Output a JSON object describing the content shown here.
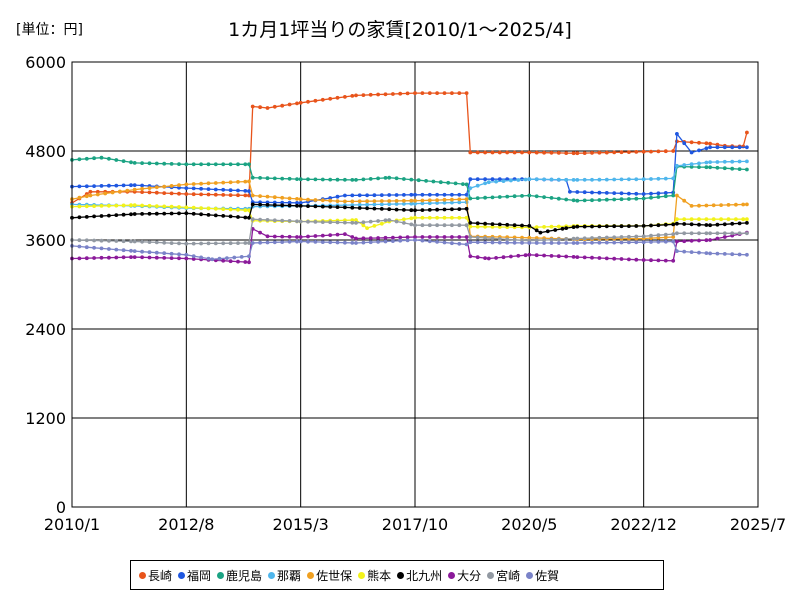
{
  "unit_label": "[単位：円]",
  "chart_data": {
    "type": "line",
    "title": "1カ月1坪当りの家賃[2010/1～2025/4]",
    "xlabel": "",
    "ylabel": "",
    "xlim": [
      "2010/1",
      "2025/7"
    ],
    "ylim": [
      0,
      6000
    ],
    "x_ticks": [
      "2010/1",
      "2012/8",
      "2015/3",
      "2017/10",
      "2020/5",
      "2022/12",
      "2025/7"
    ],
    "y_ticks": [
      0,
      1200,
      2400,
      3600,
      4800,
      6000
    ],
    "y_tick_labels": [
      "0",
      "1200",
      "2400",
      "3600",
      "4800",
      "6000"
    ],
    "grid": true,
    "legend_position": "bottom",
    "series": [
      {
        "name": "長崎",
        "color": "#E8541B",
        "points": [
          [
            "2010/1",
            4100
          ],
          [
            "2010/6",
            4250
          ],
          [
            "2011/6",
            4250
          ],
          [
            "2012/8",
            4220
          ],
          [
            "2014/1",
            4200
          ],
          [
            "2014/2",
            5400
          ],
          [
            "2014/6",
            5380
          ],
          [
            "2015/3",
            5450
          ],
          [
            "2016/6",
            5550
          ],
          [
            "2017/10",
            5580
          ],
          [
            "2018/12",
            5580
          ],
          [
            "2019/1",
            4780
          ],
          [
            "2020/5",
            4780
          ],
          [
            "2021/6",
            4770
          ],
          [
            "2022/12",
            4790
          ],
          [
            "2023/8",
            4800
          ],
          [
            "2023/9",
            4930
          ],
          [
            "2024/6",
            4900
          ],
          [
            "2024/10",
            4870
          ],
          [
            "2025/3",
            4860
          ],
          [
            "2025/4",
            5050
          ]
        ]
      },
      {
        "name": "福岡",
        "color": "#1F57E0",
        "points": [
          [
            "2010/1",
            4320
          ],
          [
            "2011/6",
            4340
          ],
          [
            "2012/8",
            4300
          ],
          [
            "2014/1",
            4260
          ],
          [
            "2014/2",
            4110
          ],
          [
            "2015/3",
            4100
          ],
          [
            "2016/3",
            4200
          ],
          [
            "2017/10",
            4210
          ],
          [
            "2018/12",
            4210
          ],
          [
            "2019/1",
            4420
          ],
          [
            "2020/5",
            4420
          ],
          [
            "2021/3",
            4410
          ],
          [
            "2021/4",
            4250
          ],
          [
            "2022/12",
            4220
          ],
          [
            "2023/8",
            4240
          ],
          [
            "2023/9",
            5030
          ],
          [
            "2024/1",
            4780
          ],
          [
            "2024/6",
            4850
          ],
          [
            "2025/4",
            4850
          ]
        ]
      },
      {
        "name": "鹿児島",
        "color": "#1BA383",
        "points": [
          [
            "2010/1",
            4680
          ],
          [
            "2010/9",
            4710
          ],
          [
            "2011/6",
            4640
          ],
          [
            "2012/8",
            4620
          ],
          [
            "2014/1",
            4620
          ],
          [
            "2014/2",
            4440
          ],
          [
            "2015/3",
            4420
          ],
          [
            "2016/6",
            4410
          ],
          [
            "2017/3",
            4440
          ],
          [
            "2018/12",
            4350
          ],
          [
            "2019/1",
            4160
          ],
          [
            "2020/5",
            4200
          ],
          [
            "2021/6",
            4130
          ],
          [
            "2022/12",
            4160
          ],
          [
            "2023/8",
            4200
          ],
          [
            "2023/9",
            4590
          ],
          [
            "2024/6",
            4580
          ],
          [
            "2025/4",
            4550
          ]
        ]
      },
      {
        "name": "那覇",
        "color": "#4FB6EC",
        "points": [
          [
            "2010/1",
            4080
          ],
          [
            "2011/6",
            4060
          ],
          [
            "2012/8",
            4030
          ],
          [
            "2014/1",
            4020
          ],
          [
            "2014/2",
            4050
          ],
          [
            "2015/3",
            4060
          ],
          [
            "2016/3",
            4070
          ],
          [
            "2017/10",
            4090
          ],
          [
            "2018/12",
            4110
          ],
          [
            "2019/1",
            4300
          ],
          [
            "2019/6",
            4380
          ],
          [
            "2020/5",
            4420
          ],
          [
            "2021/6",
            4410
          ],
          [
            "2022/12",
            4420
          ],
          [
            "2023/8",
            4430
          ],
          [
            "2023/9",
            4600
          ],
          [
            "2024/6",
            4650
          ],
          [
            "2025/4",
            4660
          ]
        ]
      },
      {
        "name": "佐世保",
        "color": "#F0A020",
        "points": [
          [
            "2010/1",
            4150
          ],
          [
            "2010/6",
            4200
          ],
          [
            "2011/6",
            4280
          ],
          [
            "2012/8",
            4350
          ],
          [
            "2014/1",
            4390
          ],
          [
            "2014/2",
            4200
          ],
          [
            "2015/3",
            4150
          ],
          [
            "2016/3",
            4120
          ],
          [
            "2017/10",
            4130
          ],
          [
            "2018/12",
            4150
          ],
          [
            "2019/1",
            3650
          ],
          [
            "2020/5",
            3630
          ],
          [
            "2021/6",
            3610
          ],
          [
            "2022/12",
            3620
          ],
          [
            "2023/8",
            3640
          ],
          [
            "2023/9",
            4200
          ],
          [
            "2024/1",
            4060
          ],
          [
            "2025/4",
            4080
          ]
        ]
      },
      {
        "name": "熊本",
        "color": "#F2F21A",
        "points": [
          [
            "2010/1",
            4050
          ],
          [
            "2011/6",
            4070
          ],
          [
            "2012/8",
            4040
          ],
          [
            "2014/1",
            4000
          ],
          [
            "2014/2",
            3860
          ],
          [
            "2015/3",
            3850
          ],
          [
            "2016/6",
            3870
          ],
          [
            "2016/9",
            3760
          ],
          [
            "2017/3",
            3850
          ],
          [
            "2017/10",
            3900
          ],
          [
            "2018/12",
            3900
          ],
          [
            "2019/1",
            3780
          ],
          [
            "2020/5",
            3770
          ],
          [
            "2021/6",
            3790
          ],
          [
            "2022/12",
            3790
          ],
          [
            "2023/8",
            3820
          ],
          [
            "2023/9",
            3880
          ],
          [
            "2025/4",
            3880
          ]
        ]
      },
      {
        "name": "北九州",
        "color": "#000000",
        "points": [
          [
            "2010/1",
            3900
          ],
          [
            "2011/6",
            3950
          ],
          [
            "2012/8",
            3960
          ],
          [
            "2014/1",
            3900
          ],
          [
            "2014/2",
            4080
          ],
          [
            "2015/3",
            4060
          ],
          [
            "2016/3",
            4040
          ],
          [
            "2017/10",
            4000
          ],
          [
            "2018/12",
            4020
          ],
          [
            "2019/1",
            3830
          ],
          [
            "2020/5",
            3790
          ],
          [
            "2020/8",
            3700
          ],
          [
            "2021/3",
            3760
          ],
          [
            "2021/6",
            3780
          ],
          [
            "2022/12",
            3790
          ],
          [
            "2023/8",
            3810
          ],
          [
            "2023/9",
            3820
          ],
          [
            "2024/6",
            3800
          ],
          [
            "2025/4",
            3830
          ]
        ]
      },
      {
        "name": "大分",
        "color": "#8B1A9A",
        "points": [
          [
            "2010/1",
            3350
          ],
          [
            "2011/6",
            3370
          ],
          [
            "2012/8",
            3350
          ],
          [
            "2014/1",
            3300
          ],
          [
            "2014/2",
            3750
          ],
          [
            "2014/6",
            3650
          ],
          [
            "2015/3",
            3640
          ],
          [
            "2016/3",
            3680
          ],
          [
            "2016/6",
            3620
          ],
          [
            "2017/10",
            3640
          ],
          [
            "2018/12",
            3640
          ],
          [
            "2019/1",
            3380
          ],
          [
            "2019/6",
            3350
          ],
          [
            "2020/5",
            3400
          ],
          [
            "2021/6",
            3370
          ],
          [
            "2022/12",
            3330
          ],
          [
            "2023/8",
            3320
          ],
          [
            "2023/9",
            3580
          ],
          [
            "2024/6",
            3600
          ],
          [
            "2025/4",
            3700
          ]
        ]
      },
      {
        "name": "宮崎",
        "color": "#9299A2",
        "points": [
          [
            "2010/1",
            3600
          ],
          [
            "2011/6",
            3580
          ],
          [
            "2012/8",
            3550
          ],
          [
            "2014/1",
            3560
          ],
          [
            "2014/2",
            3880
          ],
          [
            "2015/3",
            3850
          ],
          [
            "2016/6",
            3830
          ],
          [
            "2017/3",
            3870
          ],
          [
            "2017/10",
            3800
          ],
          [
            "2018/12",
            3800
          ],
          [
            "2019/1",
            3640
          ],
          [
            "2020/5",
            3590
          ],
          [
            "2021/6",
            3620
          ],
          [
            "2022/12",
            3650
          ],
          [
            "2023/8",
            3680
          ],
          [
            "2023/9",
            3690
          ],
          [
            "2024/6",
            3690
          ],
          [
            "2025/4",
            3690
          ]
        ]
      },
      {
        "name": "佐賀",
        "color": "#7A83C8",
        "points": [
          [
            "2010/1",
            3520
          ],
          [
            "2011/6",
            3450
          ],
          [
            "2012/8",
            3400
          ],
          [
            "2013/3",
            3340
          ],
          [
            "2014/1",
            3380
          ],
          [
            "2014/2",
            3560
          ],
          [
            "2015/3",
            3580
          ],
          [
            "2016/6",
            3560
          ],
          [
            "2017/10",
            3600
          ],
          [
            "2018/12",
            3540
          ],
          [
            "2019/1",
            3570
          ],
          [
            "2020/5",
            3560
          ],
          [
            "2021/6",
            3560
          ],
          [
            "2022/12",
            3570
          ],
          [
            "2023/8",
            3580
          ],
          [
            "2023/9",
            3450
          ],
          [
            "2024/6",
            3420
          ],
          [
            "2025/4",
            3400
          ]
        ]
      }
    ]
  }
}
